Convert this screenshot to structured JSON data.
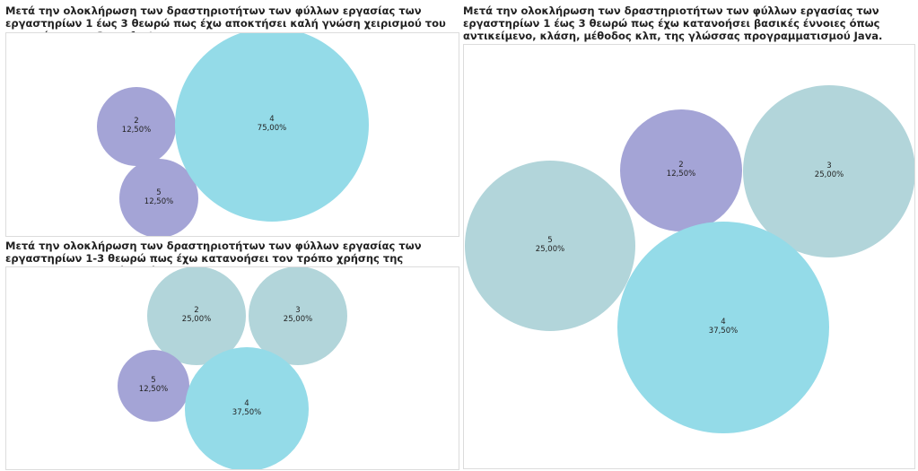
{
  "chart_data": [
    {
      "type": "bubble",
      "title": "Μετά την ολοκλήρωση των δραστηριοτήτων των φύλλων εργασίας των εργαστηρίων 1 έως 3 θεωρώ πως έχω αποκτήσει καλή γνώση χειρισμού του προγράμματος Greenfoot.",
      "bubbles": [
        {
          "category": "2",
          "value": "12,50%",
          "share": 12.5,
          "color": "#a4a4d6"
        },
        {
          "category": "5",
          "value": "12,50%",
          "share": 12.5,
          "color": "#a4a4d6"
        },
        {
          "category": "4",
          "value": "75,00%",
          "share": 75.0,
          "color": "#94dbe8"
        }
      ]
    },
    {
      "type": "bubble",
      "title": "Μετά την ολοκλήρωση των δραστηριοτήτων των φύλλων εργασίας των εργαστηρίων 1-3 θεωρώ πως έχω κατανοήσει τον τρόπο χρήσης της αντικειμενοστρεφούς γλώσσας Java.",
      "bubbles": [
        {
          "category": "2",
          "value": "25,00%",
          "share": 25.0,
          "color": "#b2d5da"
        },
        {
          "category": "3",
          "value": "25,00%",
          "share": 25.0,
          "color": "#b2d5da"
        },
        {
          "category": "5",
          "value": "12,50%",
          "share": 12.5,
          "color": "#a4a4d6"
        },
        {
          "category": "4",
          "value": "37,50%",
          "share": 37.5,
          "color": "#94dbe8"
        }
      ]
    },
    {
      "type": "bubble",
      "title": "Μετά την ολοκλήρωση των δραστηριοτήτων των φύλλων εργασίας των εργαστηρίων 1 έως 3 θεωρώ πως έχω κατανοήσει βασικές έννοιες όπως αντικείμενο, κλάση, μέθοδος κλπ, της γλώσσας προγραμματισμού Java.",
      "bubbles": [
        {
          "category": "2",
          "value": "12,50%",
          "share": 12.5,
          "color": "#a4a4d6"
        },
        {
          "category": "3",
          "value": "25,00%",
          "share": 25.0,
          "color": "#b2d5da"
        },
        {
          "category": "5",
          "value": "25,00%",
          "share": 25.0,
          "color": "#b2d5da"
        },
        {
          "category": "4",
          "value": "37,50%",
          "share": 37.5,
          "color": "#94dbe8"
        }
      ]
    }
  ]
}
